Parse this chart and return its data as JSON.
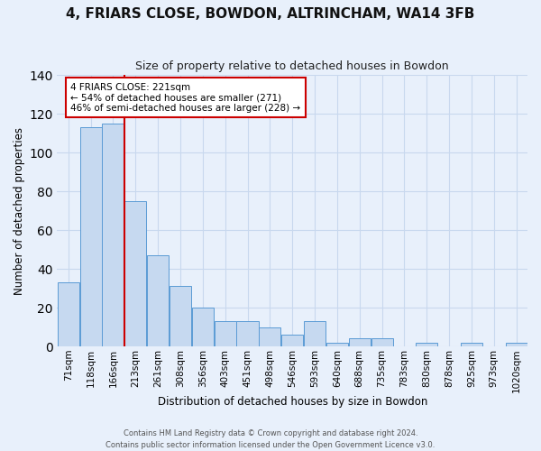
{
  "title": "4, FRIARS CLOSE, BOWDON, ALTRINCHAM, WA14 3FB",
  "subtitle": "Size of property relative to detached houses in Bowdon",
  "xlabel": "Distribution of detached houses by size in Bowdon",
  "ylabel": "Number of detached properties",
  "categories": [
    "71sqm",
    "118sqm",
    "166sqm",
    "213sqm",
    "261sqm",
    "308sqm",
    "356sqm",
    "403sqm",
    "451sqm",
    "498sqm",
    "546sqm",
    "593sqm",
    "640sqm",
    "688sqm",
    "735sqm",
    "783sqm",
    "830sqm",
    "878sqm",
    "925sqm",
    "973sqm",
    "1020sqm"
  ],
  "values": [
    33,
    113,
    115,
    75,
    47,
    31,
    20,
    13,
    13,
    10,
    6,
    13,
    2,
    4,
    4,
    0,
    2,
    0,
    2,
    0,
    2
  ],
  "bar_color": "#c6d9f0",
  "bar_edge_color": "#5b9bd5",
  "vline_color": "#cc0000",
  "annotation_line1": "4 FRIARS CLOSE: 221sqm",
  "annotation_line2": "← 54% of detached houses are smaller (271)",
  "annotation_line3": "46% of semi-detached houses are larger (228) →",
  "annotation_box_color": "#ffffff",
  "annotation_box_edge": "#cc0000",
  "ylim": [
    0,
    140
  ],
  "footer1": "Contains HM Land Registry data © Crown copyright and database right 2024.",
  "footer2": "Contains public sector information licensed under the Open Government Licence v3.0.",
  "bg_color": "#e8f0fb",
  "grid_color": "#c8d8ee",
  "title_fontsize": 11,
  "subtitle_fontsize": 9,
  "tick_fontsize": 7.5,
  "bar_width": 0.97
}
